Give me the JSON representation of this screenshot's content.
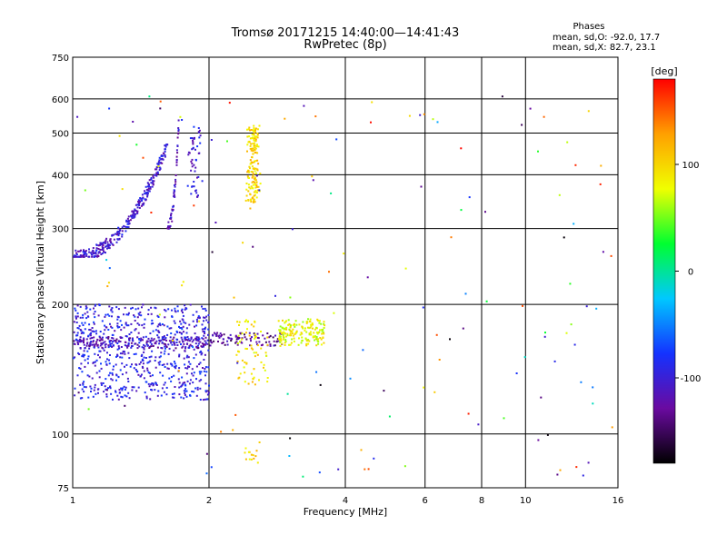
{
  "chart_data": {
    "type": "scatter",
    "title": "Tromsø 20171215 14:40:00—14:41:43",
    "subtitle": "RwPretec (8p)",
    "xlabel": "Frequency [MHz]",
    "ylabel": "Stationary phase Virtual Height [km]",
    "x_scale": "log",
    "y_scale": "log",
    "xlim": [
      1,
      16
    ],
    "ylim": [
      75,
      750
    ],
    "x_ticks": [
      1,
      2,
      4,
      6,
      8,
      10,
      16
    ],
    "y_ticks": [
      75,
      100,
      200,
      300,
      400,
      500,
      600,
      750
    ],
    "grid": true,
    "phase_info": {
      "heading": "Phases",
      "line_o": "mean, sd,O: -92.0, 17.7",
      "line_x": "mean, sd,X:  82.7, 23.1"
    },
    "colorbar": {
      "label": "[deg]",
      "range": [
        -180,
        180
      ],
      "ticks": [
        100,
        0,
        -100
      ],
      "colors": [
        "#000000",
        "#6a0aa0",
        "#1432ff",
        "#00c8ff",
        "#00ff30",
        "#f0ff00",
        "#ffa000",
        "#ff0000"
      ]
    },
    "traces": [
      {
        "x_range": [
          1.0,
          1.62
        ],
        "y_range": [
          258,
          470
        ],
        "phase": -105,
        "kind": "curve",
        "count": 320
      },
      {
        "x_range": [
          1.62,
          1.72
        ],
        "y_range": [
          300,
          560
        ],
        "phase": -110,
        "kind": "curve",
        "count": 60
      },
      {
        "x_range": [
          1.78,
          1.95
        ],
        "y_range": [
          350,
          520
        ],
        "phase": -100,
        "kind": "column",
        "count": 50
      },
      {
        "x_range": [
          1.0,
          2.0
        ],
        "y_range": [
          120,
          200
        ],
        "phase": -95,
        "kind": "cloud",
        "count": 700
      },
      {
        "x_range": [
          1.0,
          2.0
        ],
        "y_range": [
          158,
          168
        ],
        "phase": -115,
        "kind": "band",
        "count": 200
      },
      {
        "x_range": [
          2.4,
          2.62
        ],
        "y_range": [
          345,
          520
        ],
        "phase": 100,
        "kind": "column",
        "count": 160
      },
      {
        "x_range": [
          2.0,
          2.9
        ],
        "y_range": [
          160,
          172
        ],
        "phase": -130,
        "kind": "band",
        "count": 90
      },
      {
        "x_range": [
          2.85,
          3.6
        ],
        "y_range": [
          160,
          185
        ],
        "phase": 80,
        "kind": "cloud",
        "count": 170
      },
      {
        "x_range": [
          2.3,
          2.7
        ],
        "y_range": [
          130,
          185
        ],
        "phase": 95,
        "kind": "cloud",
        "count": 70
      },
      {
        "x_range": [
          2.4,
          2.6
        ],
        "y_range": [
          85,
          98
        ],
        "phase": 100,
        "kind": "cloud",
        "count": 14
      },
      {
        "x_range": [
          1.0,
          16.0
        ],
        "y_range": [
          78,
          620
        ],
        "phase": 0,
        "kind": "noise",
        "count": 150
      }
    ]
  }
}
